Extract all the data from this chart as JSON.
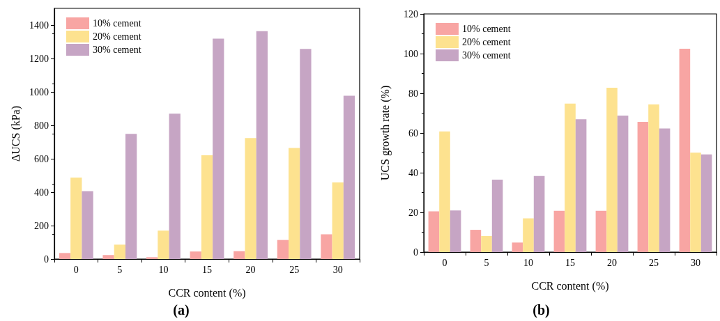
{
  "chart_data": [
    {
      "type": "bar",
      "annotations": [
        "(a)"
      ],
      "xlabel": "CCR content (%)",
      "ylabel": "ΔUCS (kPa)",
      "categories": [
        "0",
        "5",
        "10",
        "15",
        "20",
        "25",
        "30"
      ],
      "series": [
        {
          "name": "10% cement",
          "color": "#f8a5a3",
          "values": [
            36,
            24,
            11,
            45,
            47,
            114,
            148
          ]
        },
        {
          "name": "20% cement",
          "color": "#fde28f",
          "values": [
            487,
            86,
            170,
            621,
            724,
            665,
            458
          ]
        },
        {
          "name": "30% cement",
          "color": "#c6a5c4",
          "values": [
            406,
            749,
            870,
            1319,
            1364,
            1257,
            977
          ]
        }
      ],
      "ylim": [
        0,
        1500
      ],
      "yticks": [
        0,
        200,
        400,
        600,
        800,
        1000,
        1200,
        1400
      ],
      "grid": false,
      "legend": "top left"
    },
    {
      "type": "bar",
      "annotations": [
        "(b)"
      ],
      "xlabel": "CCR content (%)",
      "ylabel": "UCS growth rate (%)",
      "categories": [
        "0",
        "5",
        "10",
        "15",
        "20",
        "25",
        "30"
      ],
      "series": [
        {
          "name": "10% cement",
          "color": "#f8a5a3",
          "values": [
            20.5,
            11.2,
            4.8,
            20.8,
            20.8,
            65.6,
            102.5
          ]
        },
        {
          "name": "20% cement",
          "color": "#fde28f",
          "values": [
            60.8,
            8.1,
            17.0,
            74.8,
            82.8,
            74.4,
            50.1
          ]
        },
        {
          "name": "30% cement",
          "color": "#c6a5c4",
          "values": [
            21.0,
            36.5,
            38.3,
            66.9,
            68.8,
            62.3,
            49.2
          ]
        }
      ],
      "ylim": [
        0,
        120
      ],
      "yticks": [
        0,
        20,
        40,
        60,
        80,
        100,
        120
      ],
      "grid": false,
      "legend": "top left"
    }
  ]
}
